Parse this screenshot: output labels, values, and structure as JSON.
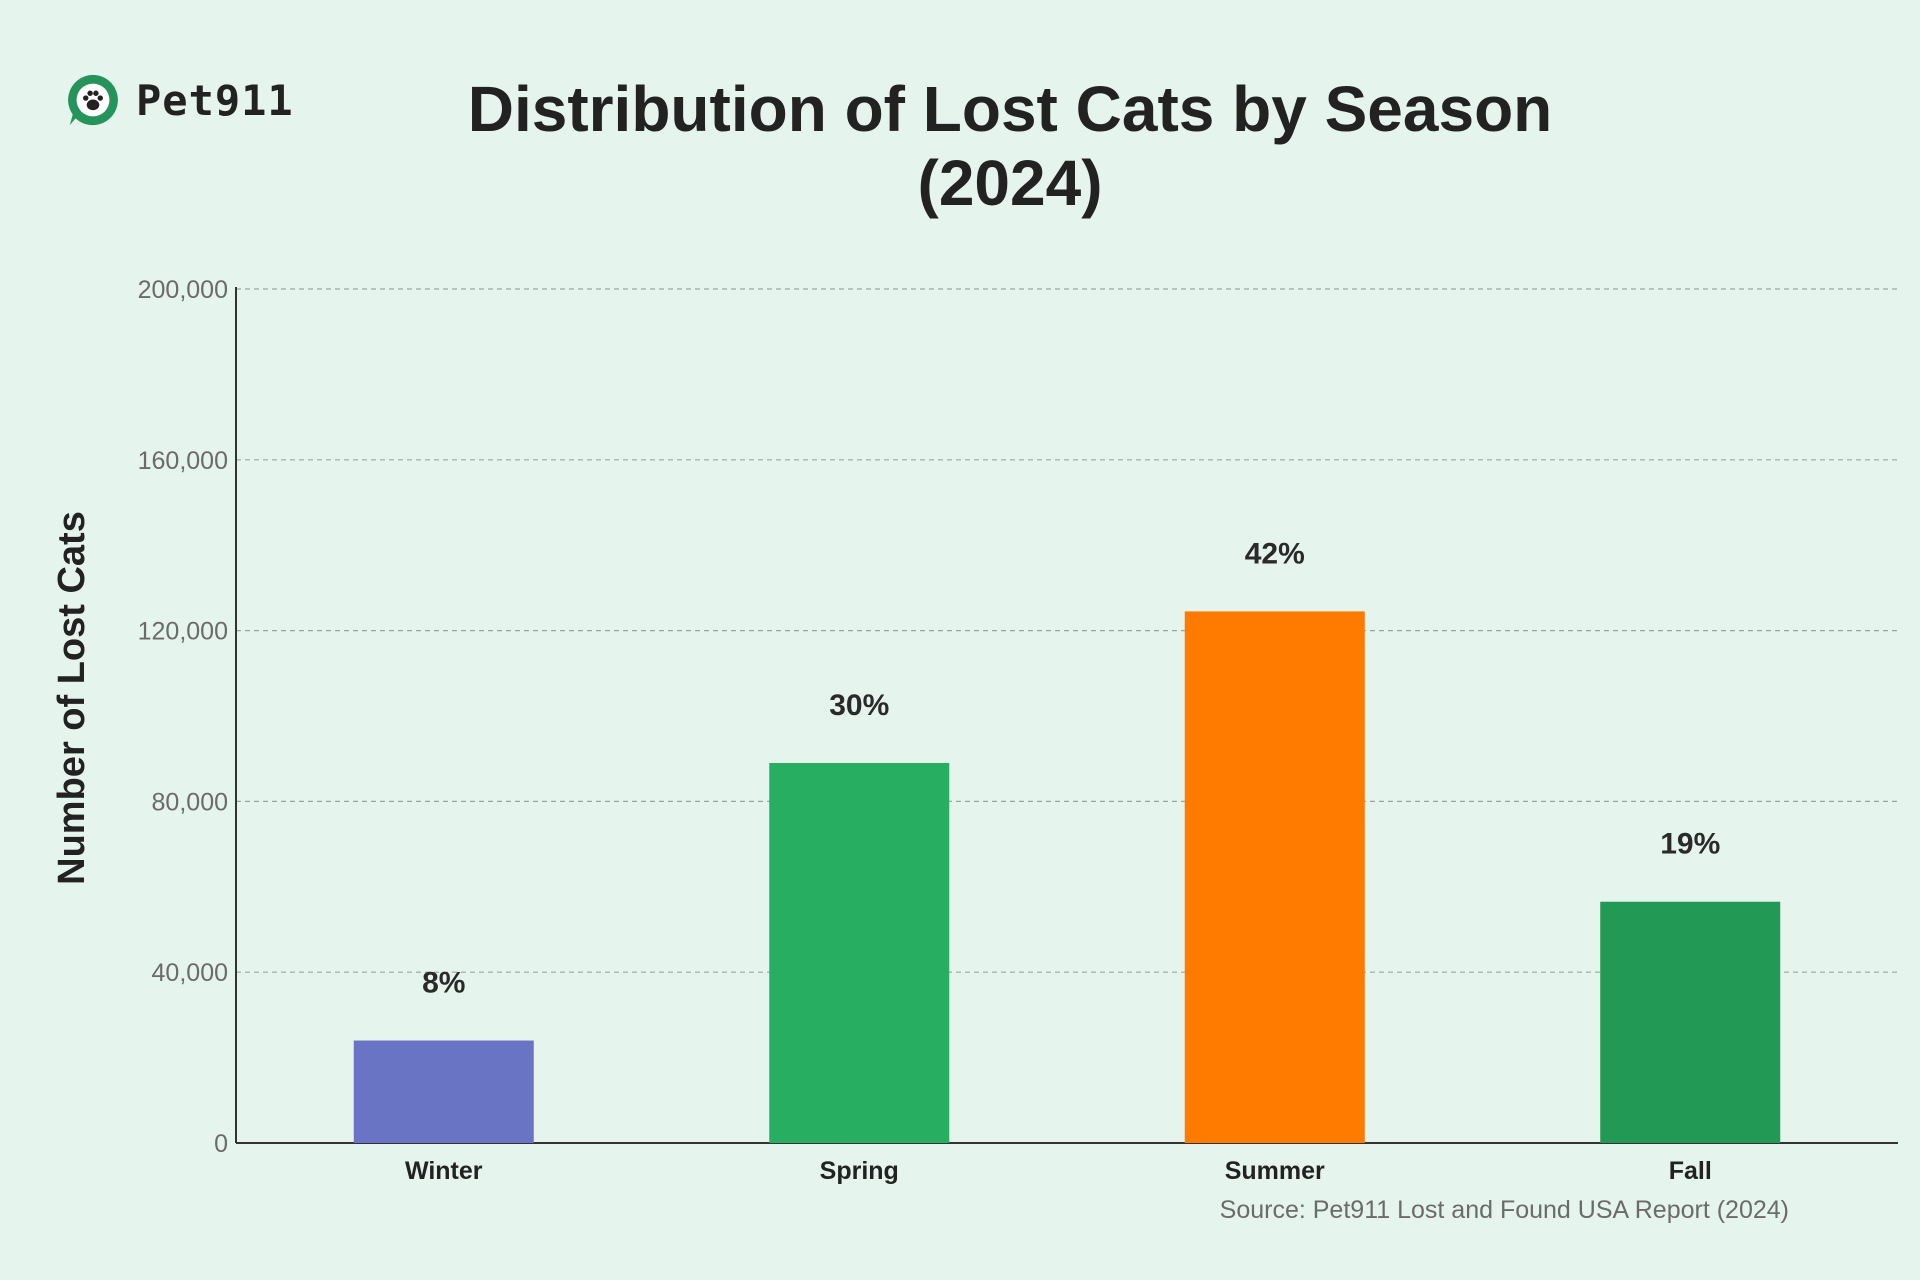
{
  "brand": {
    "name": "Pet911",
    "logo_icon": "paw-chat-bubble-icon",
    "color": "#26935a"
  },
  "title_line1": "Distribution of Lost Cats by Season",
  "title_line2": "(2024)",
  "source": "Source: Pet911 Lost and Found USA Report (2024)",
  "chart_data": {
    "type": "bar",
    "title": "Distribution of Lost Cats by Season (2024)",
    "xlabel": "",
    "ylabel": "Number of Lost Cats",
    "categories": [
      "Winter",
      "Spring",
      "Summer",
      "Fall"
    ],
    "values": [
      24000,
      89000,
      124500,
      56500
    ],
    "data_labels": [
      "8%",
      "30%",
      "42%",
      "19%"
    ],
    "colors": [
      "#6a74c4",
      "#27ae60",
      "#ff7b00",
      "#229954"
    ],
    "ylim": [
      0,
      200000
    ],
    "yticks": [
      0,
      40000,
      80000,
      120000,
      160000,
      200000
    ],
    "ytick_labels": [
      "0",
      "40,000",
      "80,000",
      "120,000",
      "160,000",
      "200,000"
    ],
    "grid": true,
    "legend": "none"
  }
}
